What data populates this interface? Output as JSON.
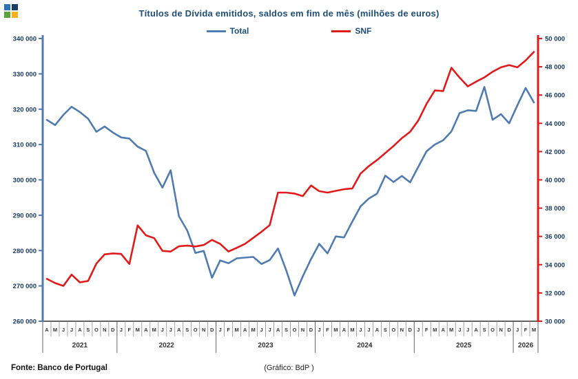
{
  "header": {
    "title": "Títulos de Dívida emitidos, saldos em fim de mês (milhões de euros)",
    "logo_colors": [
      "#2e74b5",
      "#1c3e66",
      "#5aa43c",
      "#f2b01e"
    ]
  },
  "legend": [
    {
      "label": "Total",
      "color": "#4f7bb0"
    },
    {
      "label": "SNF",
      "color": "#e01a1a"
    }
  ],
  "footer": {
    "source": "Fonte: Banco de Portugal",
    "credit": "(Gráfico: BdP )"
  },
  "chart_data": {
    "type": "line",
    "title": "Títulos de Dívida emitidos, saldos em fim de mês (milhões de euros)",
    "x_unit": "month",
    "x_range": "Abr 2021 - Mar 2026",
    "month_letters": [
      "A",
      "M",
      "J",
      "J",
      "A",
      "S",
      "O",
      "N",
      "D",
      "J",
      "F",
      "M",
      "A",
      "M",
      "J",
      "J",
      "A",
      "S",
      "O",
      "N",
      "D",
      "J",
      "F",
      "M",
      "A",
      "M",
      "J",
      "J",
      "A",
      "S",
      "O",
      "N",
      "D",
      "J",
      "F",
      "M",
      "A",
      "M",
      "J",
      "J",
      "A",
      "S",
      "O",
      "N",
      "D",
      "J",
      "F",
      "M",
      "A",
      "M",
      "J",
      "J",
      "A",
      "S",
      "O",
      "N",
      "D",
      "J",
      "F",
      "M"
    ],
    "year_groups": [
      {
        "label": "2021",
        "months": 9
      },
      {
        "label": "2022",
        "months": 12
      },
      {
        "label": "2023",
        "months": 12
      },
      {
        "label": "2024",
        "months": 12
      },
      {
        "label": "2025",
        "months": 12
      },
      {
        "label": "2026",
        "months": 3
      }
    ],
    "left_axis": {
      "min": 260000,
      "max": 340000,
      "step": 10000,
      "color": "#4f7bb0",
      "label_color": "#17375e"
    },
    "right_axis": {
      "min": 30000,
      "max": 50000,
      "step": 2000,
      "color": "#e01a1a",
      "label_color": "#17375e"
    },
    "grid": false,
    "legend_position": "top",
    "series": [
      {
        "name": "Total",
        "axis": "left",
        "color": "#4f7bb0",
        "values": [
          317000,
          315500,
          318400,
          320700,
          319200,
          317300,
          313600,
          315100,
          313400,
          312000,
          311700,
          309400,
          308200,
          302000,
          297800,
          302700,
          289700,
          285700,
          279300,
          279900,
          272300,
          277200,
          276400,
          277800,
          278000,
          278200,
          276200,
          277300,
          280600,
          274400,
          267300,
          272700,
          277600,
          281900,
          279200,
          284000,
          283700,
          288200,
          292500,
          294700,
          296100,
          301200,
          299400,
          301100,
          299300,
          303700,
          308100,
          310000,
          311200,
          313700,
          318900,
          319700,
          319500,
          326300,
          317000,
          318600,
          316000,
          321100,
          326000,
          321900
        ]
      },
      {
        "name": "SNF",
        "axis": "right",
        "color": "#e01a1a",
        "values": [
          33000,
          32700,
          32500,
          33300,
          32750,
          32850,
          34080,
          34730,
          34800,
          34760,
          34050,
          36780,
          36080,
          35880,
          34980,
          34930,
          35300,
          35350,
          35290,
          35390,
          35750,
          35470,
          34930,
          35190,
          35470,
          35900,
          36330,
          36800,
          39100,
          39100,
          39030,
          38850,
          39600,
          39200,
          39100,
          39220,
          39340,
          39390,
          40450,
          40970,
          41400,
          41900,
          42400,
          42950,
          43400,
          44200,
          45380,
          46330,
          46280,
          47930,
          47230,
          46620,
          46950,
          47250,
          47650,
          47960,
          48120,
          47960,
          48450,
          49050
        ]
      }
    ]
  }
}
